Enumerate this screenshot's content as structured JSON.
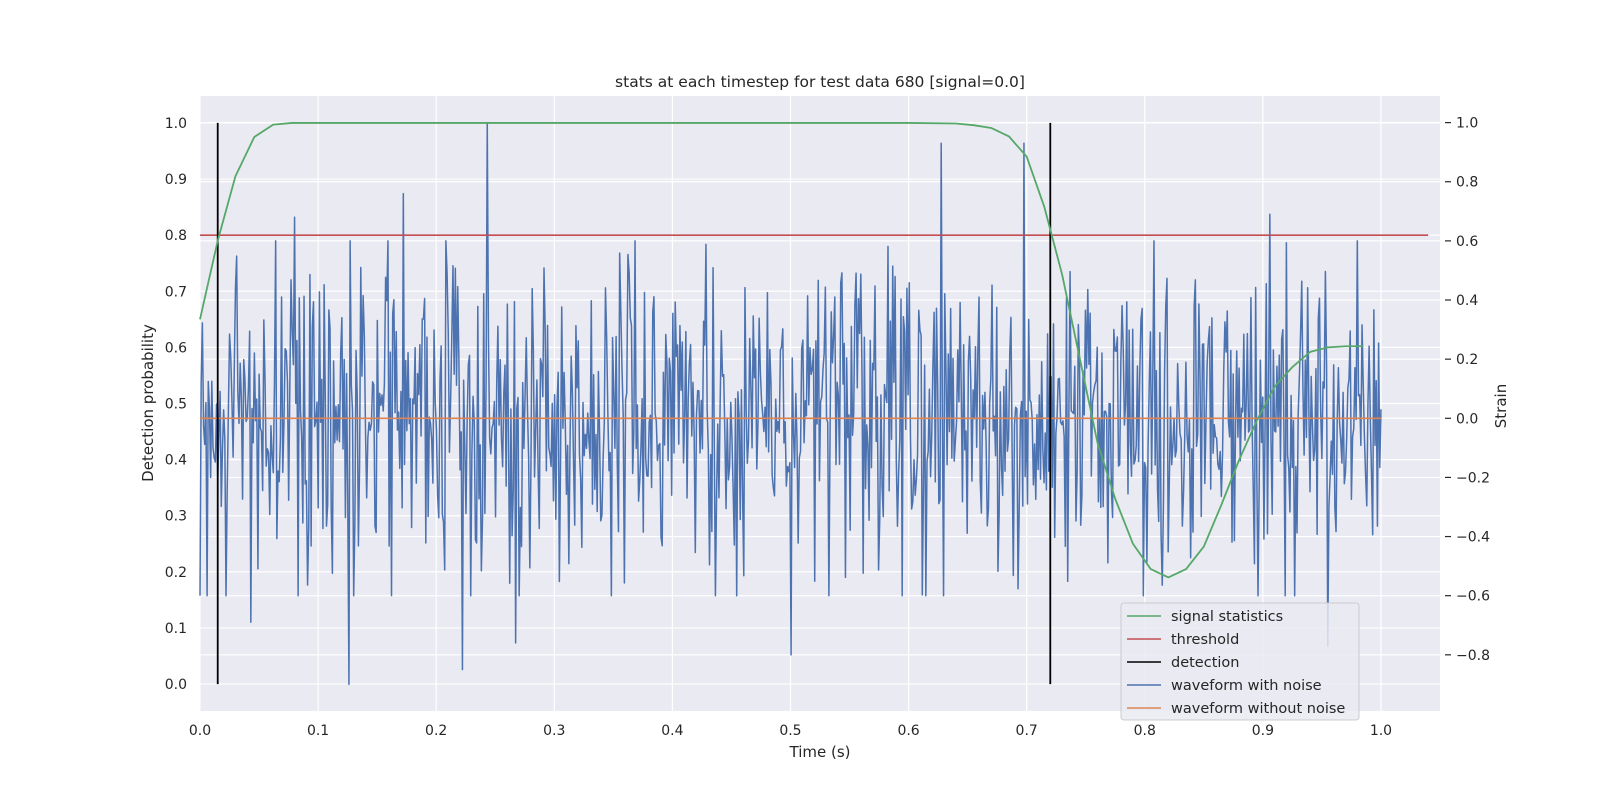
{
  "chart_data": {
    "type": "line",
    "title": "stats at each timestep for test data 680 [signal=0.0]",
    "xlabel": "Time (s)",
    "ylabel": "Detection probability",
    "y2label": "Strain",
    "xlim": [
      0.0,
      1.05
    ],
    "ylim": [
      -0.048,
      1.048
    ],
    "y2lim": [
      -0.99,
      1.09
    ],
    "xticks": [
      "0.0",
      "0.1",
      "0.2",
      "0.3",
      "0.4",
      "0.5",
      "0.6",
      "0.7",
      "0.8",
      "0.9",
      "1.0"
    ],
    "yticks": [
      "0.0",
      "0.1",
      "0.2",
      "0.3",
      "0.4",
      "0.5",
      "0.6",
      "0.7",
      "0.8",
      "0.9",
      "1.0"
    ],
    "y2ticks": [
      "−0.8",
      "−0.6",
      "−0.4",
      "−0.2",
      "0.0",
      "0.2",
      "0.4",
      "0.6",
      "0.8",
      "1.0"
    ],
    "grid": true,
    "legend_position": "lower-right",
    "colors": {
      "signal_statistics": "#55a868",
      "threshold": "#c44e52",
      "detection": "#000000",
      "waveform_with_noise": "#4c72b0",
      "waveform_without_noise": "#dd8452",
      "axes_background": "#eaeaf2",
      "grid": "#ffffff"
    },
    "series": [
      {
        "name": "signal statistics",
        "axis": "left",
        "x": [
          0.0,
          0.015,
          0.03,
          0.046,
          0.062,
          0.078,
          0.1,
          0.2,
          0.3,
          0.4,
          0.5,
          0.6,
          0.64,
          0.655,
          0.67,
          0.685,
          0.7,
          0.715,
          0.73,
          0.745,
          0.76,
          0.775,
          0.79,
          0.805,
          0.82,
          0.835,
          0.85,
          0.865,
          0.88,
          0.895,
          0.91,
          0.925,
          0.94,
          0.955,
          0.97,
          0.985
        ],
        "y": [
          0.65,
          0.79,
          0.905,
          0.975,
          0.997,
          1.0,
          1.0,
          1.0,
          1.0,
          1.0,
          1.0,
          1.0,
          0.999,
          0.996,
          0.991,
          0.976,
          0.94,
          0.85,
          0.73,
          0.58,
          0.43,
          0.33,
          0.25,
          0.205,
          0.19,
          0.205,
          0.245,
          0.32,
          0.4,
          0.47,
          0.53,
          0.565,
          0.592,
          0.6,
          0.602,
          0.602
        ]
      },
      {
        "name": "threshold",
        "axis": "left",
        "x": [
          0.0,
          1.04
        ],
        "y": [
          0.8,
          0.8
        ]
      },
      {
        "name": "detection",
        "axis": "left",
        "segments": [
          {
            "x": 0.015,
            "y": [
              0.0,
              1.0
            ]
          },
          {
            "x": 0.72,
            "y": [
              0.0,
              1.0
            ]
          }
        ]
      },
      {
        "name": "waveform with noise",
        "axis": "right",
        "samples": 1000,
        "x_range": [
          0.0,
          1.0
        ],
        "y_range": [
          -0.9,
          1.0
        ],
        "peaks": [
          {
            "x": 0.243,
            "y": 1.0
          },
          {
            "x": 0.628,
            "y": 0.93
          },
          {
            "x": 0.698,
            "y": 0.93
          },
          {
            "x": 0.172,
            "y": 0.76
          },
          {
            "x": 0.08,
            "y": 0.68
          },
          {
            "x": 0.906,
            "y": 0.69
          }
        ],
        "troughs": [
          {
            "x": 0.126,
            "y": -0.9
          },
          {
            "x": 0.222,
            "y": -0.85
          },
          {
            "x": 0.5,
            "y": -0.8
          },
          {
            "x": 0.267,
            "y": -0.76
          },
          {
            "x": 0.955,
            "y": -0.77
          },
          {
            "x": 0.043,
            "y": -0.69
          }
        ]
      },
      {
        "name": "waveform without noise",
        "axis": "right",
        "x": [
          0.0,
          1.0
        ],
        "y": [
          0.0,
          0.0
        ]
      }
    ],
    "legend": [
      "signal statistics",
      "threshold",
      "detection",
      "waveform with noise",
      "waveform without noise"
    ]
  }
}
